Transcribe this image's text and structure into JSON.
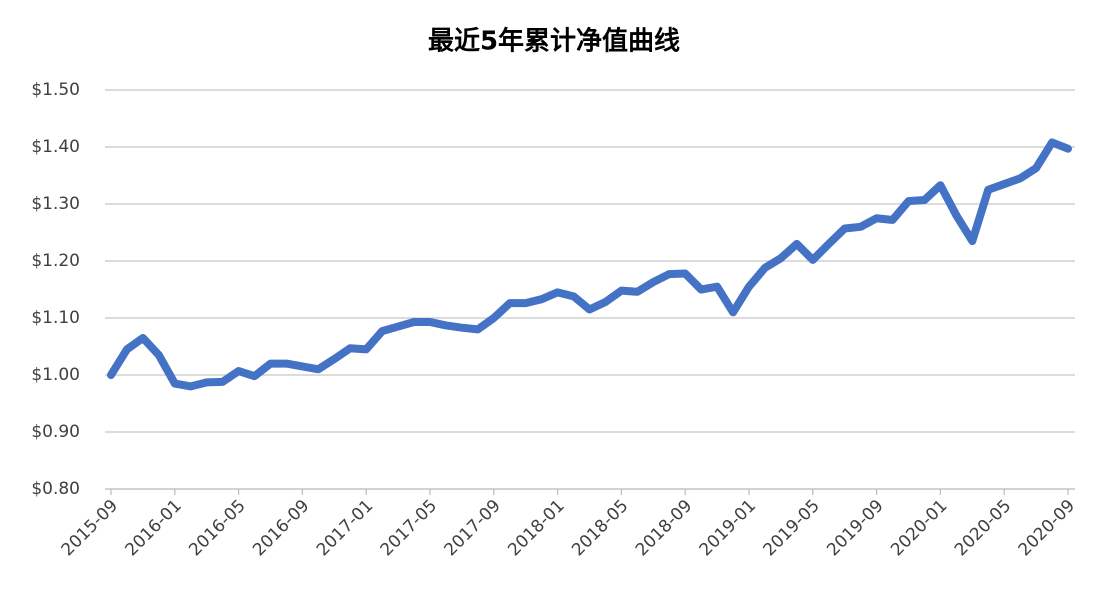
{
  "chart_data": {
    "type": "line",
    "title": "最近5年累计净值曲线",
    "categories": [
      "2015-09",
      null,
      null,
      null,
      "2016-01",
      null,
      null,
      null,
      "2016-05",
      null,
      null,
      null,
      "2016-09",
      null,
      null,
      null,
      "2017-01",
      null,
      null,
      null,
      "2017-05",
      null,
      null,
      null,
      "2017-09",
      null,
      null,
      null,
      "2018-01",
      null,
      null,
      null,
      "2018-05",
      null,
      null,
      null,
      "2018-09",
      null,
      null,
      null,
      "2019-01",
      null,
      null,
      null,
      "2019-05",
      null,
      null,
      null,
      "2019-09",
      null,
      null,
      null,
      "2020-01",
      null,
      null,
      null,
      "2020-05",
      null,
      null,
      null,
      "2020-09"
    ],
    "series": [
      {
        "color": "#4472c4",
        "values": [
          1.0,
          1.045,
          1.065,
          1.035,
          0.985,
          0.98,
          0.987,
          0.988,
          1.007,
          0.998,
          1.02,
          1.02,
          1.015,
          1.01,
          1.028,
          1.047,
          1.045,
          1.077,
          1.085,
          1.093,
          1.093,
          1.087,
          1.083,
          1.08,
          1.1,
          1.126,
          1.126,
          1.133,
          1.145,
          1.138,
          1.115,
          1.128,
          1.148,
          1.146,
          1.163,
          1.177,
          1.178,
          1.15,
          1.155,
          1.11,
          1.155,
          1.188,
          1.205,
          1.23,
          1.202,
          1.23,
          1.257,
          1.26,
          1.275,
          1.272,
          1.305,
          1.307,
          1.333,
          1.28,
          1.235,
          1.325,
          1.335,
          1.345,
          1.363,
          1.408,
          1.397
        ]
      }
    ],
    "ylim": [
      0.8,
      1.5
    ],
    "yticks": [
      {
        "value": 0.8,
        "label": "$0.80"
      },
      {
        "value": 0.9,
        "label": "$0.90"
      },
      {
        "value": 1.0,
        "label": "$1.00"
      },
      {
        "value": 1.1,
        "label": "$1.10"
      },
      {
        "value": 1.2,
        "label": "$1.20"
      },
      {
        "value": 1.3,
        "label": "$1.30"
      },
      {
        "value": 1.4,
        "label": "$1.40"
      },
      {
        "value": 1.5,
        "label": "$1.50"
      }
    ],
    "grid": true
  }
}
